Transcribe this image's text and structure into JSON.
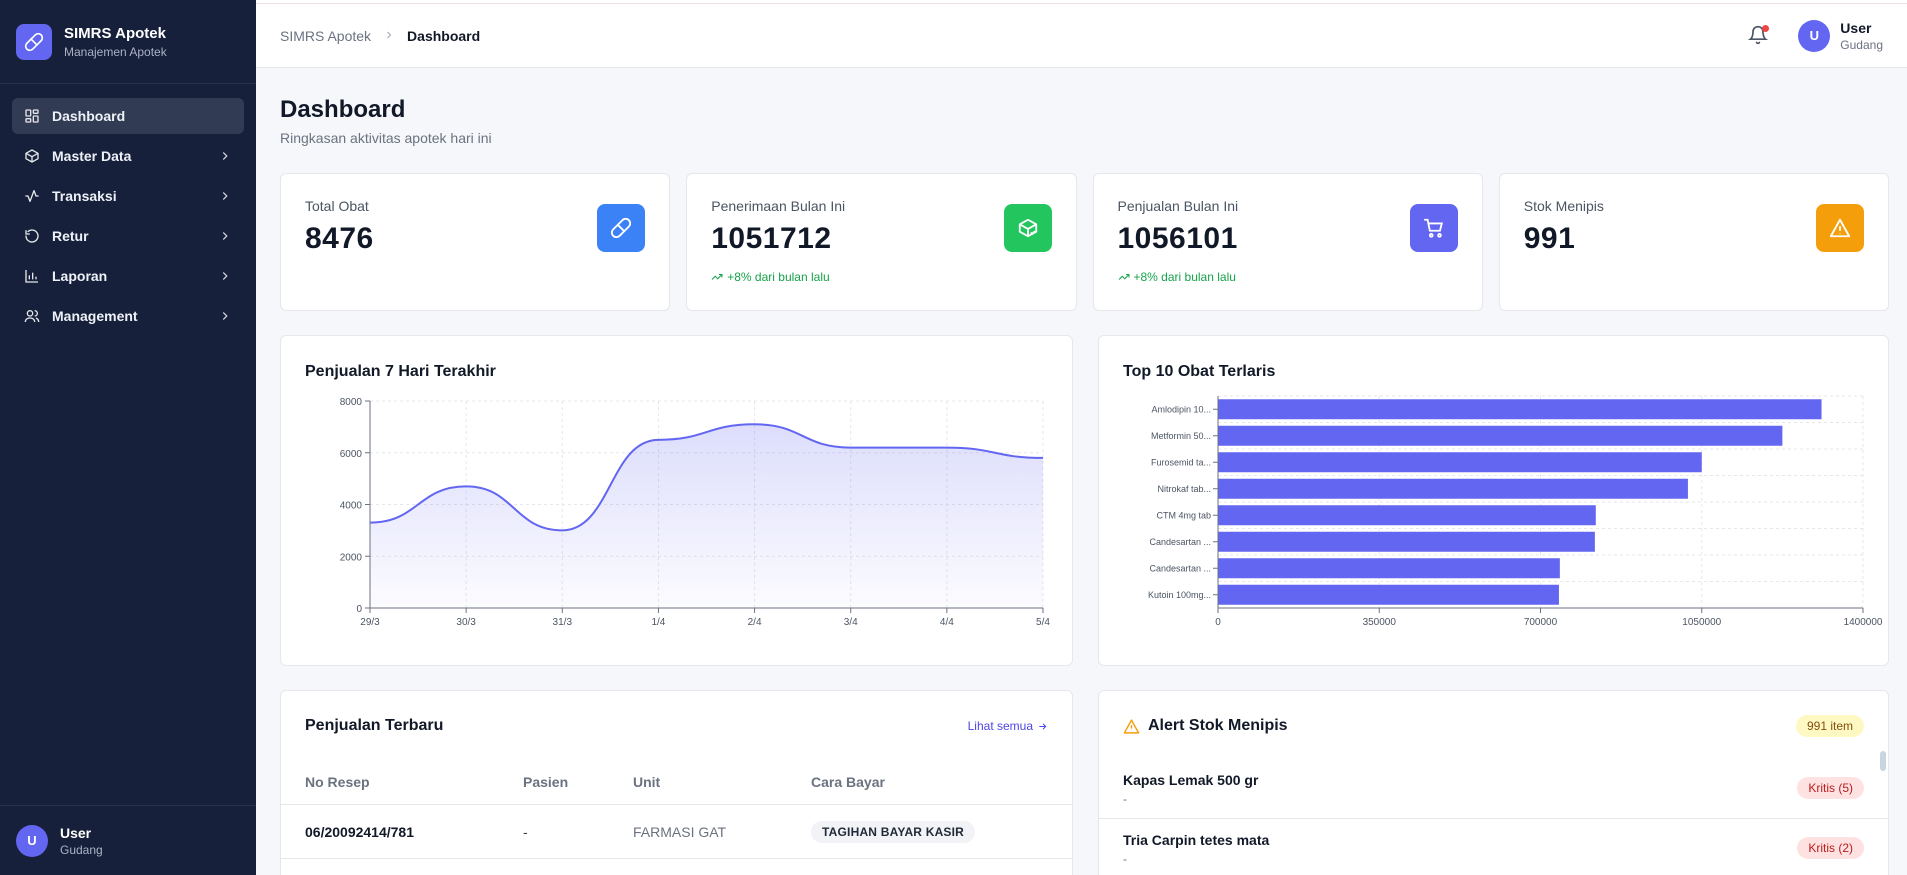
{
  "brand": {
    "title": "SIMRS Apotek",
    "subtitle": "Manajemen Apotek"
  },
  "sidebar": {
    "items": [
      {
        "label": "Dashboard",
        "icon": "grid-icon",
        "active": true
      },
      {
        "label": "Master Data",
        "icon": "box-icon"
      },
      {
        "label": "Transaksi",
        "icon": "activity-icon"
      },
      {
        "label": "Retur",
        "icon": "undo-icon"
      },
      {
        "label": "Laporan",
        "icon": "bar-chart-icon"
      },
      {
        "label": "Management",
        "icon": "users-icon"
      }
    ],
    "user": {
      "initial": "U",
      "name": "User",
      "role": "Gudang"
    }
  },
  "topbar": {
    "breadcrumb": {
      "root": "SIMRS Apotek",
      "current": "Dashboard"
    },
    "user": {
      "initial": "U",
      "name": "User",
      "role": "Gudang"
    }
  },
  "page": {
    "title": "Dashboard",
    "subtitle": "Ringkasan aktivitas apotek hari ini"
  },
  "stats": [
    {
      "label": "Total Obat",
      "value": "8476",
      "trend": "",
      "icon": "pill-icon",
      "color": "#3b82f6"
    },
    {
      "label": "Penerimaan Bulan Ini",
      "value": "1051712",
      "trend": "+8% dari bulan lalu",
      "icon": "package-check-icon",
      "color": "#22c55e"
    },
    {
      "label": "Penjualan Bulan Ini",
      "value": "1056101",
      "trend": "+8% dari bulan lalu",
      "icon": "cart-icon",
      "color": "#6366f1"
    },
    {
      "label": "Stok Menipis",
      "value": "991",
      "trend": "",
      "icon": "warning-icon",
      "color": "#f59e0b"
    }
  ],
  "chart_data": [
    {
      "type": "area",
      "title": "Penjualan 7 Hari Terakhir",
      "categories": [
        "29/3",
        "30/3",
        "31/3",
        "1/4",
        "2/4",
        "3/4",
        "4/4",
        "5/4"
      ],
      "values": [
        3300,
        4700,
        3000,
        6500,
        7100,
        6200,
        6200,
        5800
      ],
      "ylim": [
        0,
        8000
      ],
      "yticks": [
        0,
        2000,
        4000,
        6000,
        8000
      ],
      "grid": true,
      "color": "#6366f1"
    },
    {
      "type": "bar",
      "orientation": "horizontal",
      "title": "Top 10 Obat Terlaris",
      "categories": [
        "Amlodipin 10...",
        "Metformin 50...",
        "Furosemid ta...",
        "Nitrokaf tab...",
        "CTM 4mg tab",
        "Candesartan ...",
        "Candesartan ...",
        "Kutoin 100mg..."
      ],
      "values": [
        1310000,
        1225000,
        1050000,
        1020000,
        820000,
        818000,
        742000,
        740000
      ],
      "xlim": [
        0,
        1400000
      ],
      "xticks": [
        0,
        350000,
        700000,
        1050000,
        1400000
      ],
      "grid": true,
      "color": "#6366f1"
    }
  ],
  "sales": {
    "title": "Penjualan Terbaru",
    "link": "Lihat semua",
    "columns": [
      "No Resep",
      "Pasien",
      "Unit",
      "Cara Bayar"
    ],
    "rows": [
      {
        "no": "06/20092414/781",
        "pasien": "-",
        "unit": "FARMASI GAT",
        "bayar": "TAGIHAN BAYAR KASIR"
      }
    ]
  },
  "alerts": {
    "title": "Alert Stok Menipis",
    "count": "991 item",
    "items": [
      {
        "name": "Kapas Lemak 500 gr",
        "sub": "-",
        "badge": "Kritis (5)"
      },
      {
        "name": "Tria Carpin tetes mata",
        "sub": "-",
        "badge": "Kritis (2)"
      }
    ]
  }
}
